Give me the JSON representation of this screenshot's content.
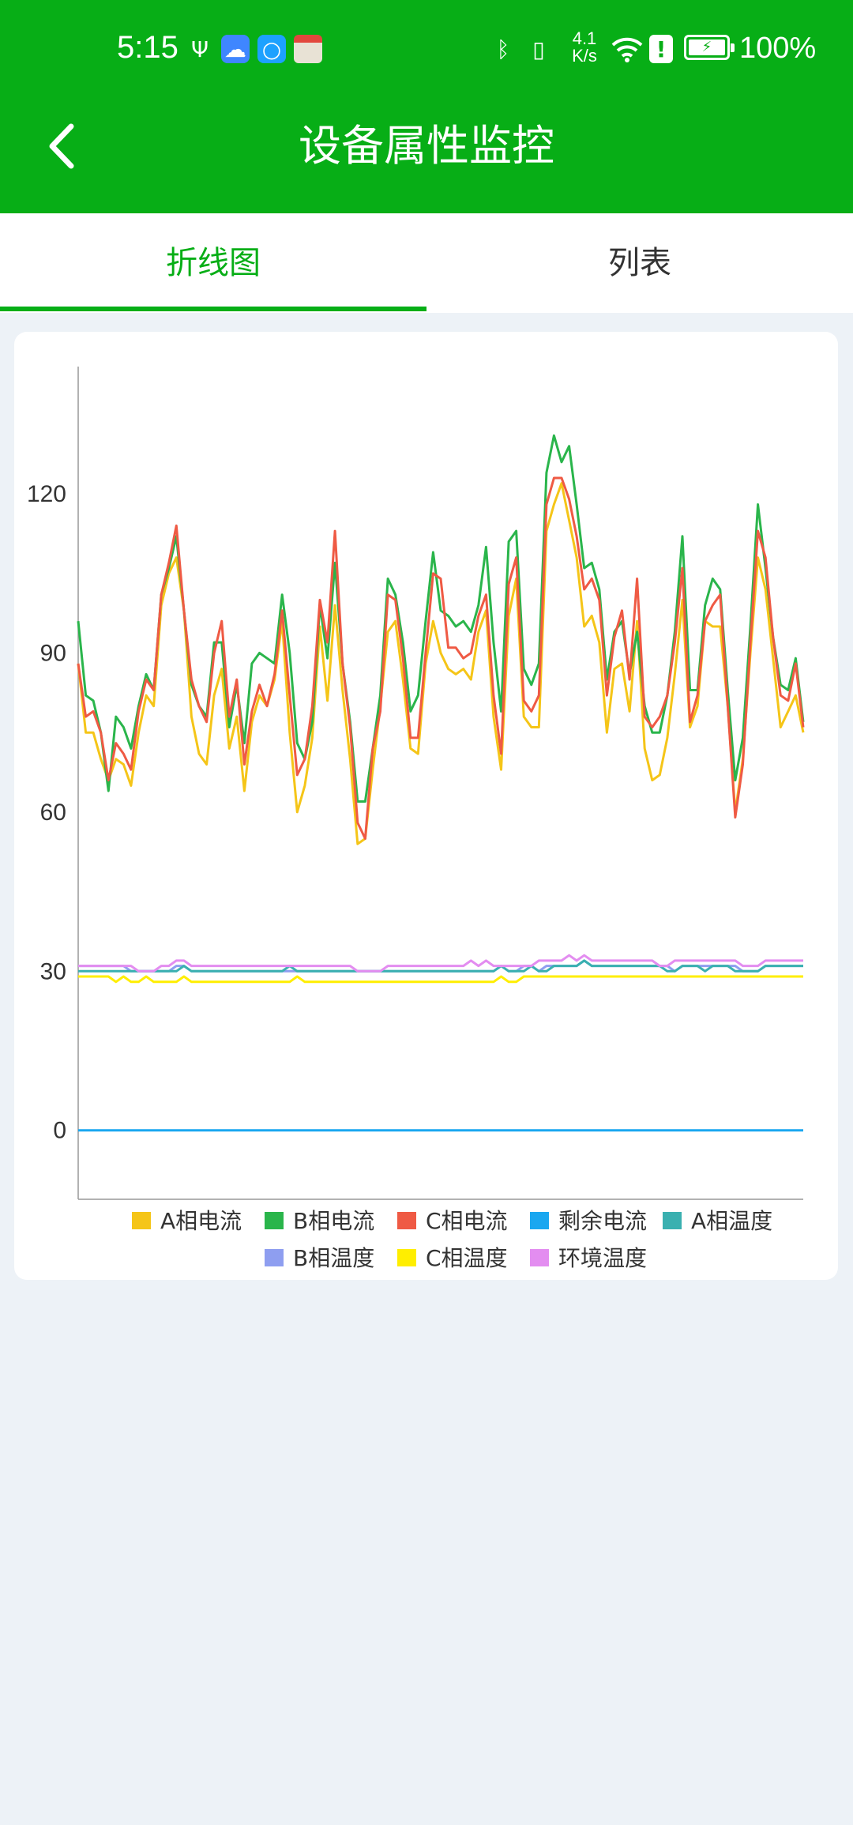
{
  "status_bar": {
    "time": "5:15",
    "net_speed_value": "4.1",
    "net_speed_unit": "K/s",
    "battery_percent": "100%",
    "icons": [
      "usb-icon",
      "cloud-app-icon",
      "search-app-icon",
      "calendar-app-icon",
      "bluetooth-icon",
      "vibrate-icon",
      "wifi-icon",
      "alert-icon",
      "battery-charging-icon"
    ]
  },
  "header": {
    "title": "设备属性监控",
    "back_icon": "chevron-left-icon",
    "background_color": "#07ae16"
  },
  "tabs": [
    {
      "label": "折线图",
      "active": true
    },
    {
      "label": "列表",
      "active": false
    }
  ],
  "accent_color": "#07ae16",
  "chart_data": {
    "type": "line",
    "title": "",
    "xlabel": "",
    "ylabel": "",
    "yticks": [
      0,
      30,
      60,
      90,
      120
    ],
    "ylim": [
      -13,
      144
    ],
    "grid": false,
    "legend_position": "bottom",
    "series": [
      {
        "name": "A相电流",
        "color": "#f5c518",
        "values": [
          88,
          75,
          75,
          70,
          66,
          70,
          69,
          65,
          75,
          82,
          80,
          99,
          105,
          108,
          98,
          78,
          71,
          69,
          82,
          87,
          72,
          78,
          64,
          77,
          82,
          80,
          85,
          96,
          75,
          60,
          65,
          74,
          95,
          81,
          99,
          83,
          70,
          54,
          55,
          68,
          80,
          94,
          96,
          85,
          72,
          71,
          88,
          96,
          90,
          87,
          86,
          87,
          85,
          94,
          98,
          78,
          68,
          97,
          104,
          78,
          76,
          76,
          113,
          118,
          122,
          115,
          108,
          95,
          97,
          92,
          75,
          87,
          88,
          79,
          96,
          72,
          66,
          67,
          74,
          86,
          100,
          76,
          80,
          96,
          95,
          95,
          80,
          60,
          70,
          90,
          108,
          102,
          89,
          76,
          79,
          82,
          75
        ]
      },
      {
        "name": "B相电流",
        "color": "#2ab54b",
        "values": [
          96,
          82,
          81,
          75,
          64,
          78,
          76,
          72,
          80,
          86,
          83,
          101,
          106,
          112,
          98,
          84,
          80,
          78,
          92,
          92,
          76,
          84,
          73,
          88,
          90,
          89,
          88,
          101,
          90,
          73,
          70,
          77,
          99,
          89,
          107,
          88,
          77,
          62,
          62,
          72,
          82,
          104,
          101,
          92,
          79,
          82,
          96,
          109,
          98,
          97,
          95,
          96,
          94,
          99,
          110,
          92,
          79,
          111,
          113,
          87,
          84,
          88,
          124,
          131,
          126,
          129,
          118,
          106,
          107,
          102,
          85,
          94,
          96,
          86,
          94,
          80,
          75,
          75,
          82,
          94,
          112,
          83,
          83,
          99,
          104,
          102,
          83,
          66,
          74,
          95,
          118,
          106,
          93,
          84,
          83,
          89,
          77
        ]
      },
      {
        "name": "C相电流",
        "color": "#ef5a44",
        "values": [
          88,
          78,
          79,
          75,
          66,
          73,
          71,
          68,
          79,
          85,
          83,
          101,
          107,
          114,
          98,
          85,
          80,
          77,
          90,
          96,
          78,
          85,
          69,
          79,
          84,
          80,
          86,
          98,
          82,
          67,
          70,
          80,
          100,
          92,
          113,
          88,
          76,
          58,
          55,
          72,
          79,
          101,
          100,
          89,
          74,
          74,
          90,
          105,
          104,
          91,
          91,
          89,
          90,
          97,
          101,
          82,
          71,
          103,
          108,
          81,
          79,
          82,
          118,
          123,
          123,
          119,
          112,
          102,
          104,
          100,
          82,
          93,
          98,
          85,
          104,
          78,
          76,
          78,
          82,
          92,
          106,
          77,
          82,
          96,
          99,
          101,
          80,
          59,
          69,
          92,
          113,
          108,
          93,
          82,
          81,
          88,
          76
        ]
      },
      {
        "name": "剩余电流",
        "color": "#1aa7f0",
        "values": [
          0,
          0,
          0,
          0,
          0,
          0,
          0,
          0,
          0,
          0,
          0,
          0,
          0,
          0,
          0,
          0,
          0,
          0,
          0,
          0,
          0,
          0,
          0,
          0,
          0,
          0,
          0,
          0,
          0,
          0,
          0,
          0,
          0,
          0,
          0,
          0,
          0,
          0,
          0,
          0,
          0,
          0,
          0,
          0,
          0,
          0,
          0,
          0,
          0,
          0,
          0,
          0,
          0,
          0,
          0,
          0,
          0,
          0,
          0,
          0,
          0,
          0,
          0,
          0,
          0,
          0,
          0,
          0,
          0,
          0,
          0,
          0,
          0,
          0,
          0,
          0,
          0,
          0,
          0,
          0,
          0,
          0,
          0,
          0,
          0,
          0,
          0,
          0,
          0,
          0,
          0,
          0,
          0,
          0,
          0,
          0,
          0
        ]
      },
      {
        "name": "A相温度",
        "color": "#3ab0b0",
        "values": [
          30,
          30,
          30,
          30,
          30,
          30,
          30,
          30,
          30,
          30,
          30,
          30,
          30,
          30,
          31,
          30,
          30,
          30,
          30,
          30,
          30,
          30,
          30,
          30,
          30,
          30,
          30,
          30,
          31,
          30,
          30,
          30,
          30,
          30,
          30,
          30,
          30,
          30,
          30,
          30,
          30,
          30,
          30,
          30,
          30,
          30,
          30,
          30,
          30,
          30,
          30,
          30,
          30,
          30,
          30,
          30,
          31,
          30,
          30,
          30,
          31,
          30,
          30,
          31,
          31,
          31,
          31,
          32,
          31,
          31,
          31,
          31,
          31,
          31,
          31,
          31,
          31,
          31,
          30,
          30,
          31,
          31,
          31,
          30,
          31,
          31,
          31,
          30,
          30,
          30,
          30,
          31,
          31,
          31,
          31,
          31,
          31
        ]
      },
      {
        "name": "B相温度",
        "color": "#8e9ef0",
        "values": [
          31,
          31,
          31,
          31,
          31,
          31,
          31,
          30,
          30,
          30,
          30,
          30,
          30,
          31,
          31,
          30,
          30,
          30,
          30,
          30,
          30,
          30,
          30,
          30,
          30,
          30,
          30,
          30,
          30,
          30,
          30,
          30,
          30,
          30,
          30,
          30,
          30,
          30,
          30,
          30,
          30,
          30,
          30,
          30,
          30,
          30,
          30,
          30,
          30,
          30,
          30,
          30,
          30,
          30,
          30,
          30,
          31,
          30,
          30,
          31,
          31,
          30,
          31,
          31,
          31,
          31,
          31,
          32,
          31,
          31,
          31,
          31,
          31,
          31,
          31,
          31,
          31,
          31,
          31,
          30,
          31,
          31,
          31,
          31,
          31,
          31,
          31,
          31,
          30,
          30,
          30,
          31,
          31,
          31,
          31,
          31,
          31
        ]
      },
      {
        "name": "C相温度",
        "color": "#ffee00",
        "values": [
          29,
          29,
          29,
          29,
          29,
          28,
          29,
          28,
          28,
          29,
          28,
          28,
          28,
          28,
          29,
          28,
          28,
          28,
          28,
          28,
          28,
          28,
          28,
          28,
          28,
          28,
          28,
          28,
          28,
          29,
          28,
          28,
          28,
          28,
          28,
          28,
          28,
          28,
          28,
          28,
          28,
          28,
          28,
          28,
          28,
          28,
          28,
          28,
          28,
          28,
          28,
          28,
          28,
          28,
          28,
          28,
          29,
          28,
          28,
          29,
          29,
          29,
          29,
          29,
          29,
          29,
          29,
          29,
          29,
          29,
          29,
          29,
          29,
          29,
          29,
          29,
          29,
          29,
          29,
          29,
          29,
          29,
          29,
          29,
          29,
          29,
          29,
          29,
          29,
          29,
          29,
          29,
          29,
          29,
          29,
          29,
          29
        ]
      },
      {
        "name": "环境温度",
        "color": "#e38df0",
        "values": [
          31,
          31,
          31,
          31,
          31,
          31,
          31,
          31,
          30,
          30,
          30,
          31,
          31,
          32,
          32,
          31,
          31,
          31,
          31,
          31,
          31,
          31,
          31,
          31,
          31,
          31,
          31,
          31,
          31,
          31,
          31,
          31,
          31,
          31,
          31,
          31,
          31,
          30,
          30,
          30,
          30,
          31,
          31,
          31,
          31,
          31,
          31,
          31,
          31,
          31,
          31,
          31,
          32,
          31,
          32,
          31,
          31,
          31,
          31,
          31,
          31,
          32,
          32,
          32,
          32,
          33,
          32,
          33,
          32,
          32,
          32,
          32,
          32,
          32,
          32,
          32,
          32,
          31,
          31,
          32,
          32,
          32,
          32,
          32,
          32,
          32,
          32,
          32,
          31,
          31,
          31,
          32,
          32,
          32,
          32,
          32,
          32
        ]
      }
    ]
  }
}
